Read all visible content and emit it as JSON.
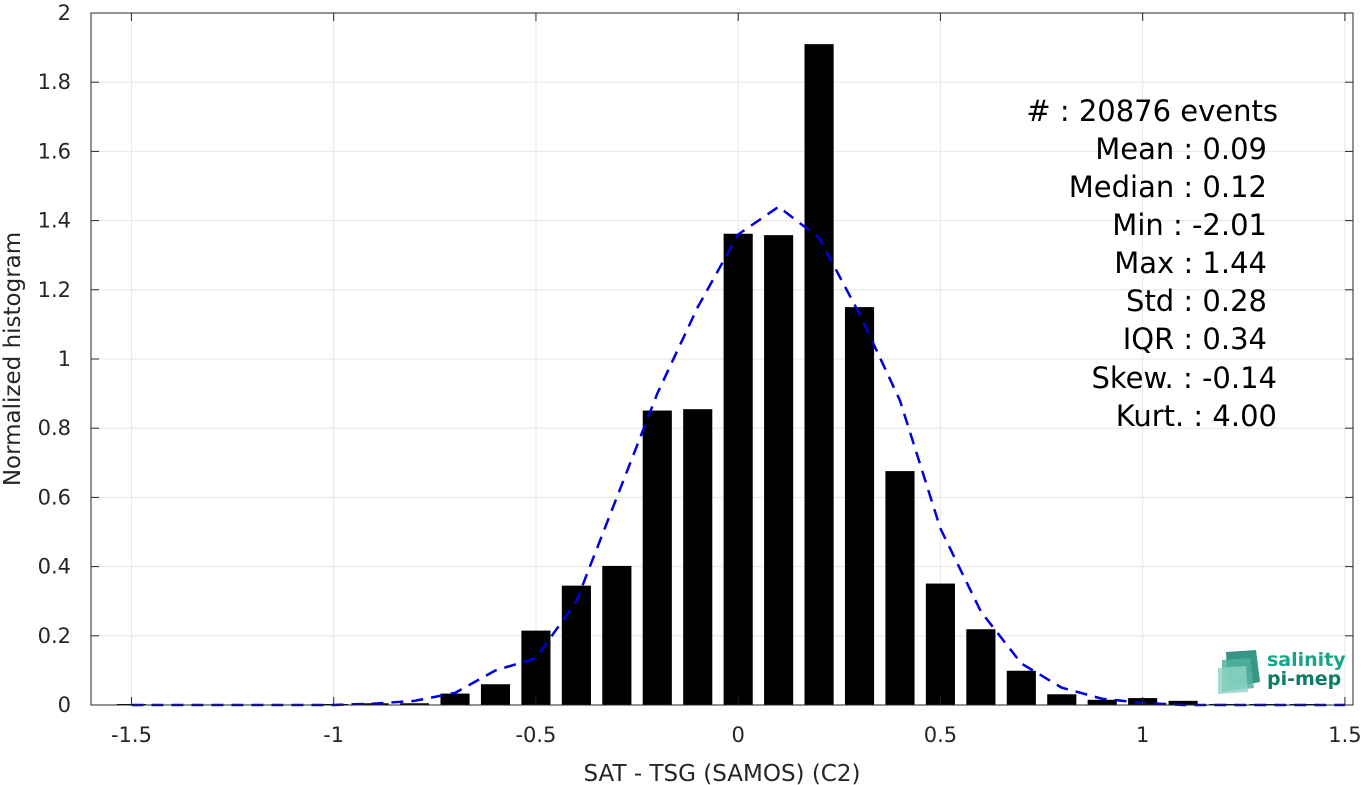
{
  "chart_data": {
    "type": "bar",
    "xlabel": "SAT - TSG (SAMOS) (C2)",
    "ylabel": "Normalized histogram",
    "xlim": [
      -1.6,
      1.52
    ],
    "ylim": [
      0,
      2
    ],
    "grid": true,
    "x_ticks": [
      -1.5,
      -1,
      -0.5,
      0,
      0.5,
      1,
      1.5
    ],
    "x_tick_labels": [
      "-1.5",
      "-1",
      "-0.5",
      "0",
      "0.5",
      "1",
      "1.5"
    ],
    "y_ticks": [
      0,
      0.2,
      0.4,
      0.6,
      0.8,
      1,
      1.2,
      1.4,
      1.6,
      1.8,
      2
    ],
    "y_tick_labels": [
      "0",
      "0.2",
      "0.4",
      "0.6",
      "0.8",
      "1",
      "1.2",
      "1.4",
      "1.6",
      "1.8",
      "2"
    ],
    "bar_color": "#000000",
    "bars": {
      "x": [
        -1.5,
        -1.4,
        -1.3,
        -1.2,
        -1.1,
        -1.0,
        -0.9,
        -0.8,
        -0.7,
        -0.6,
        -0.5,
        -0.4,
        -0.3,
        -0.2,
        -0.1,
        0.0,
        0.1,
        0.2,
        0.3,
        0.4,
        0.5,
        0.6,
        0.7,
        0.8,
        0.9,
        1.0,
        1.1,
        1.2,
        1.3,
        1.4
      ],
      "values": [
        0.002,
        0.0,
        0.0,
        0.0,
        0.0,
        0.002,
        0.005,
        0.005,
        0.033,
        0.06,
        0.215,
        0.345,
        0.402,
        0.851,
        0.855,
        1.362,
        1.358,
        1.91,
        1.15,
        0.676,
        0.351,
        0.219,
        0.099,
        0.031,
        0.015,
        0.02,
        0.012,
        0.003,
        0.002,
        0.002
      ]
    },
    "fit": {
      "name": "Gaussian fit",
      "color": "#0000dd",
      "style": "dashed",
      "x": [
        -1.5,
        -1.4,
        -1.3,
        -1.2,
        -1.1,
        -1.0,
        -0.9,
        -0.8,
        -0.7,
        -0.6,
        -0.5,
        -0.4,
        -0.3,
        -0.2,
        -0.1,
        0.0,
        0.1,
        0.2,
        0.3,
        0.4,
        0.5,
        0.6,
        0.7,
        0.8,
        0.9,
        1.0,
        1.1,
        1.2,
        1.3,
        1.4,
        1.5
      ],
      "y": [
        0.0,
        0.0,
        0.0,
        0.0,
        0.0,
        0.0,
        0.004,
        0.012,
        0.035,
        0.1,
        0.135,
        0.3,
        0.6,
        0.9,
        1.15,
        1.36,
        1.44,
        1.35,
        1.13,
        0.88,
        0.51,
        0.27,
        0.12,
        0.05,
        0.018,
        0.006,
        0.0,
        0.0,
        0.0,
        0.0,
        0.0
      ]
    }
  },
  "stats": [
    "#  : 20876 events",
    "Mean : 0.09",
    "Median : 0.12",
    "Min : -2.01",
    "Max : 1.44",
    "Std : 0.28",
    "IQR : 0.34",
    "Skew. : -0.14",
    "Kurt. : 4.00"
  ],
  "logo": {
    "line1": "salinity",
    "line2": "pi-mep",
    "color1": "#1aa389",
    "color2": "#0f7a66"
  }
}
